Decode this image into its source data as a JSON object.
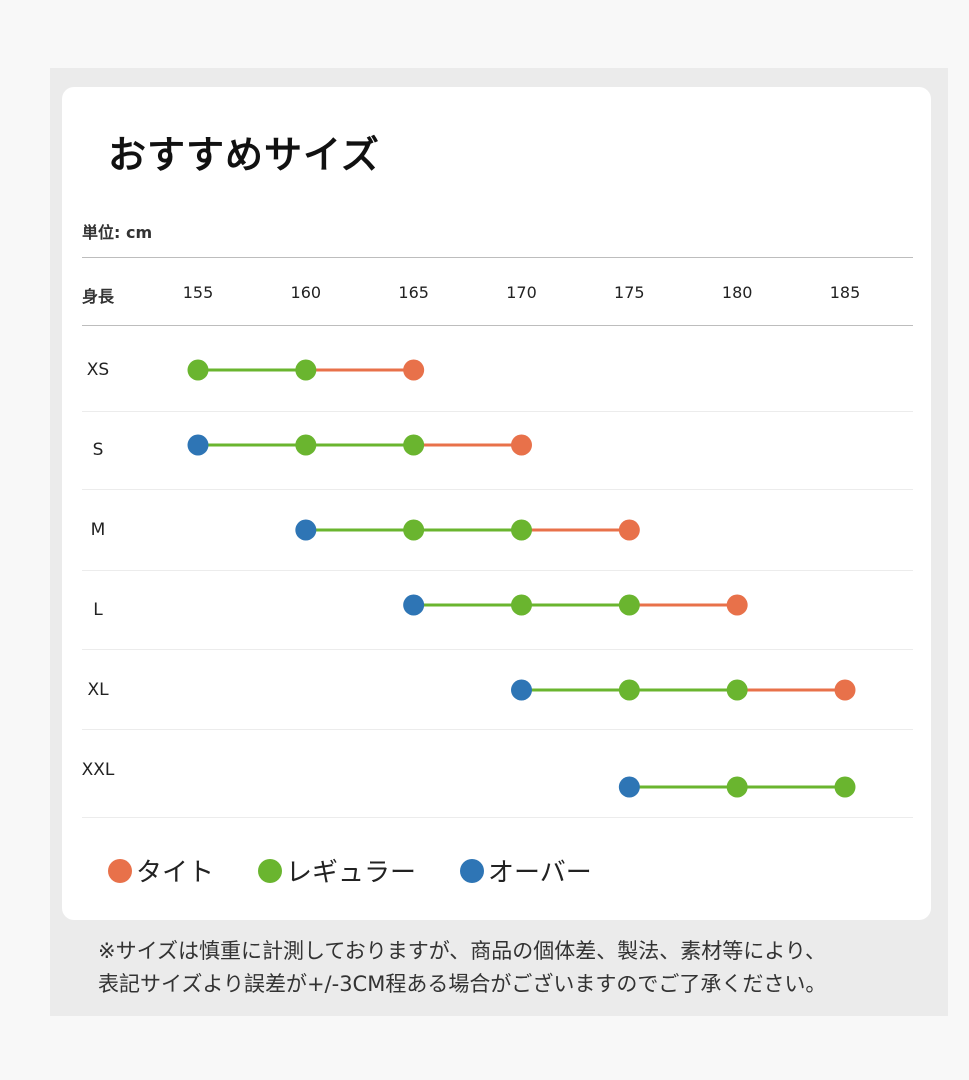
{
  "title": "おすすめサイズ",
  "unit_label": "単位: cm",
  "height_label": "身長",
  "colors": {
    "tight": "#e8714a",
    "regular": "#6ab52f",
    "over": "#2e75b5"
  },
  "chart_data": {
    "type": "scatter",
    "title": "おすすめサイズ",
    "xlabel": "身長",
    "x_ticks": [
      "155",
      "160",
      "165",
      "170",
      "175",
      "180",
      "185"
    ],
    "xlim": [
      155,
      185
    ],
    "categories": [
      "XS",
      "S",
      "M",
      "L",
      "XL",
      "XXL"
    ],
    "rows": [
      {
        "size": "XS",
        "over": null,
        "regular": [
          155,
          160
        ],
        "tight": 165
      },
      {
        "size": "S",
        "over": 155,
        "regular": [
          160,
          165
        ],
        "tight": 170
      },
      {
        "size": "M",
        "over": 160,
        "regular": [
          165,
          170
        ],
        "tight": 175
      },
      {
        "size": "L",
        "over": 165,
        "regular": [
          170,
          175
        ],
        "tight": 180
      },
      {
        "size": "XL",
        "over": 170,
        "regular": [
          175,
          180
        ],
        "tight": 185
      },
      {
        "size": "XXL",
        "over": 175,
        "regular": [
          180,
          185
        ],
        "tight": null
      }
    ],
    "legend": [
      {
        "key": "tight",
        "label": "タイト"
      },
      {
        "key": "regular",
        "label": "レギュラー"
      },
      {
        "key": "over",
        "label": "オーバー"
      }
    ]
  },
  "note_lines": [
    "※サイズは慎重に計測しておりますが、商品の個体差、製法、素材等により、",
    "表記サイズより誤差が+/-3CM程ある場合がございますのでご了承ください。"
  ]
}
